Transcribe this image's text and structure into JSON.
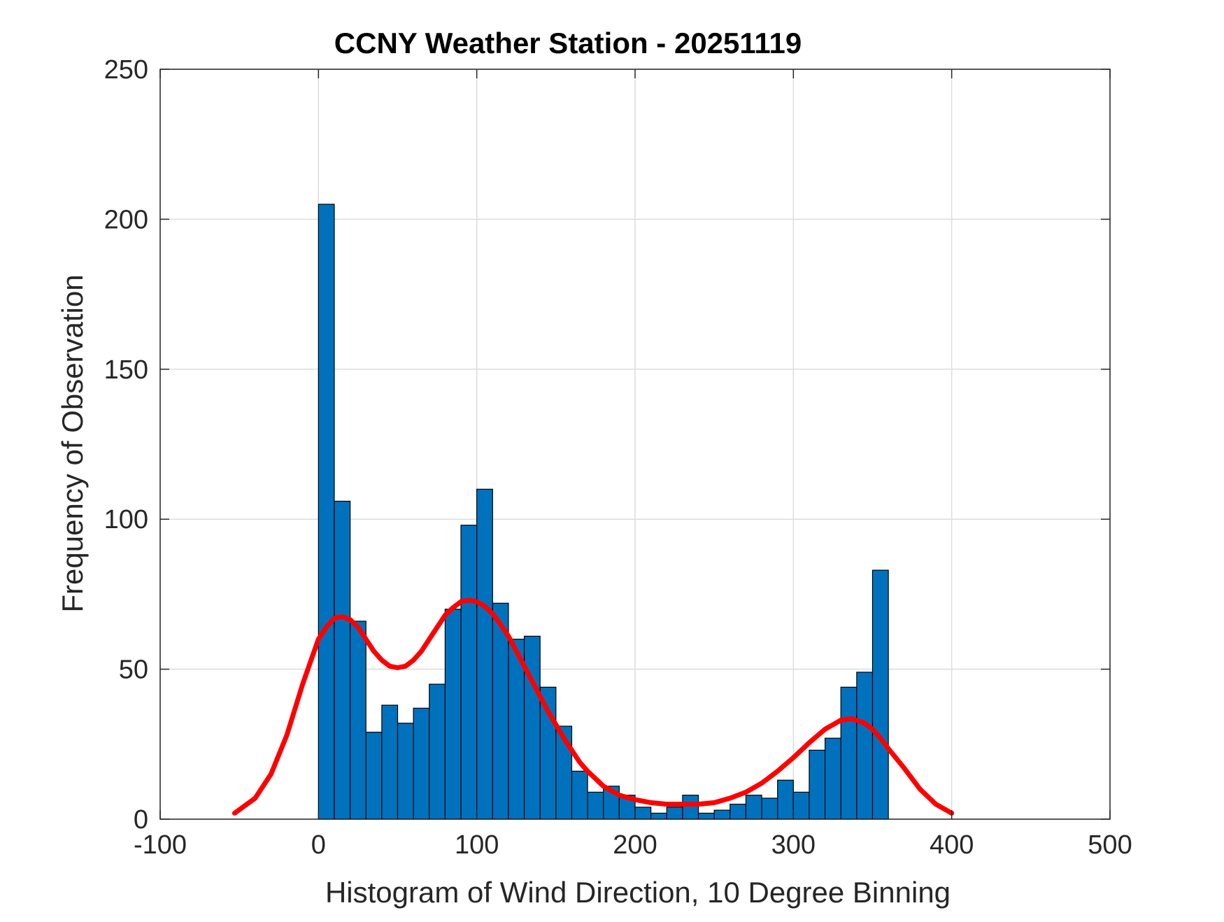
{
  "chart_data": {
    "type": "bar",
    "title": "CCNY Weather Station - 20251119",
    "xlabel": "Histogram of Wind Direction, 10 Degree Binning",
    "ylabel": "Frequency of Observation",
    "xlim": [
      -100,
      500
    ],
    "ylim": [
      0,
      250
    ],
    "xticks": [
      -100,
      0,
      100,
      200,
      300,
      400,
      500
    ],
    "xtick_labels": [
      "-100",
      "0",
      "100",
      "200",
      "300",
      "400",
      "500"
    ],
    "yticks": [
      0,
      50,
      100,
      150,
      200,
      250
    ],
    "ytick_labels": [
      "0",
      "50",
      "100",
      "150",
      "200",
      "250"
    ],
    "grid": true,
    "bin_width": 10,
    "bar_color": "#0072BD",
    "bar_edge_color": "#000000",
    "bins": [
      {
        "start": 0,
        "end": 10,
        "count": 205
      },
      {
        "start": 10,
        "end": 20,
        "count": 106
      },
      {
        "start": 20,
        "end": 30,
        "count": 66
      },
      {
        "start": 30,
        "end": 40,
        "count": 29
      },
      {
        "start": 40,
        "end": 50,
        "count": 38
      },
      {
        "start": 50,
        "end": 60,
        "count": 32
      },
      {
        "start": 60,
        "end": 70,
        "count": 37
      },
      {
        "start": 70,
        "end": 80,
        "count": 45
      },
      {
        "start": 80,
        "end": 90,
        "count": 70
      },
      {
        "start": 90,
        "end": 100,
        "count": 98
      },
      {
        "start": 100,
        "end": 110,
        "count": 110
      },
      {
        "start": 110,
        "end": 120,
        "count": 72
      },
      {
        "start": 120,
        "end": 130,
        "count": 60
      },
      {
        "start": 130,
        "end": 140,
        "count": 61
      },
      {
        "start": 140,
        "end": 150,
        "count": 44
      },
      {
        "start": 150,
        "end": 160,
        "count": 31
      },
      {
        "start": 160,
        "end": 170,
        "count": 16
      },
      {
        "start": 170,
        "end": 180,
        "count": 9
      },
      {
        "start": 180,
        "end": 190,
        "count": 11
      },
      {
        "start": 190,
        "end": 200,
        "count": 8
      },
      {
        "start": 200,
        "end": 210,
        "count": 4
      },
      {
        "start": 210,
        "end": 220,
        "count": 2
      },
      {
        "start": 220,
        "end": 230,
        "count": 4
      },
      {
        "start": 230,
        "end": 240,
        "count": 8
      },
      {
        "start": 240,
        "end": 250,
        "count": 2
      },
      {
        "start": 250,
        "end": 260,
        "count": 3
      },
      {
        "start": 260,
        "end": 270,
        "count": 5
      },
      {
        "start": 270,
        "end": 280,
        "count": 8
      },
      {
        "start": 280,
        "end": 290,
        "count": 7
      },
      {
        "start": 290,
        "end": 300,
        "count": 13
      },
      {
        "start": 300,
        "end": 310,
        "count": 9
      },
      {
        "start": 310,
        "end": 320,
        "count": 23
      },
      {
        "start": 320,
        "end": 330,
        "count": 27
      },
      {
        "start": 330,
        "end": 340,
        "count": 44
      },
      {
        "start": 340,
        "end": 350,
        "count": 49
      },
      {
        "start": 350,
        "end": 360,
        "count": 83
      }
    ],
    "curve": {
      "color": "#FF0000",
      "x": [
        -53,
        -40,
        -30,
        -20,
        -10,
        0,
        5,
        10,
        15,
        20,
        25,
        30,
        35,
        40,
        45,
        50,
        55,
        60,
        65,
        70,
        75,
        80,
        85,
        90,
        95,
        100,
        105,
        110,
        115,
        120,
        125,
        130,
        135,
        140,
        145,
        150,
        155,
        160,
        165,
        170,
        175,
        180,
        190,
        200,
        210,
        220,
        230,
        240,
        250,
        260,
        270,
        280,
        290,
        300,
        310,
        320,
        330,
        337,
        345,
        350,
        355,
        360,
        370,
        380,
        390,
        400
      ],
      "y": [
        2,
        7,
        15,
        28,
        45,
        60,
        64,
        67,
        67.5,
        66.5,
        64,
        60,
        56,
        53,
        51,
        50.5,
        51,
        53,
        56,
        60,
        64,
        68,
        70.5,
        72.5,
        73,
        72.5,
        71,
        68.5,
        65,
        61,
        56,
        51,
        46,
        41,
        36,
        31.5,
        27,
        23,
        19,
        16,
        13.5,
        11,
        8,
        6.5,
        5.5,
        5,
        5,
        5,
        5.5,
        7,
        9,
        12,
        16,
        20.5,
        25.5,
        30,
        33,
        33.5,
        32,
        30,
        27,
        23.5,
        17,
        10,
        5,
        2
      ]
    }
  }
}
